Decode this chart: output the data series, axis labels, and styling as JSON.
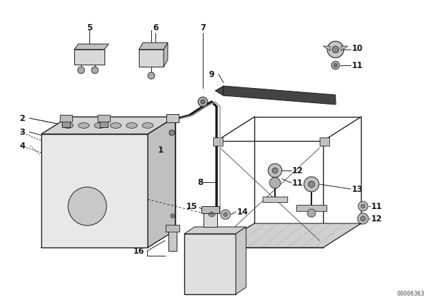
{
  "bg_color": "#ffffff",
  "line_color": "#1a1a1a",
  "text_color": "#1a1a1a",
  "diagram_code": "00006363",
  "fig_w": 6.4,
  "fig_h": 4.48,
  "dpi": 100
}
